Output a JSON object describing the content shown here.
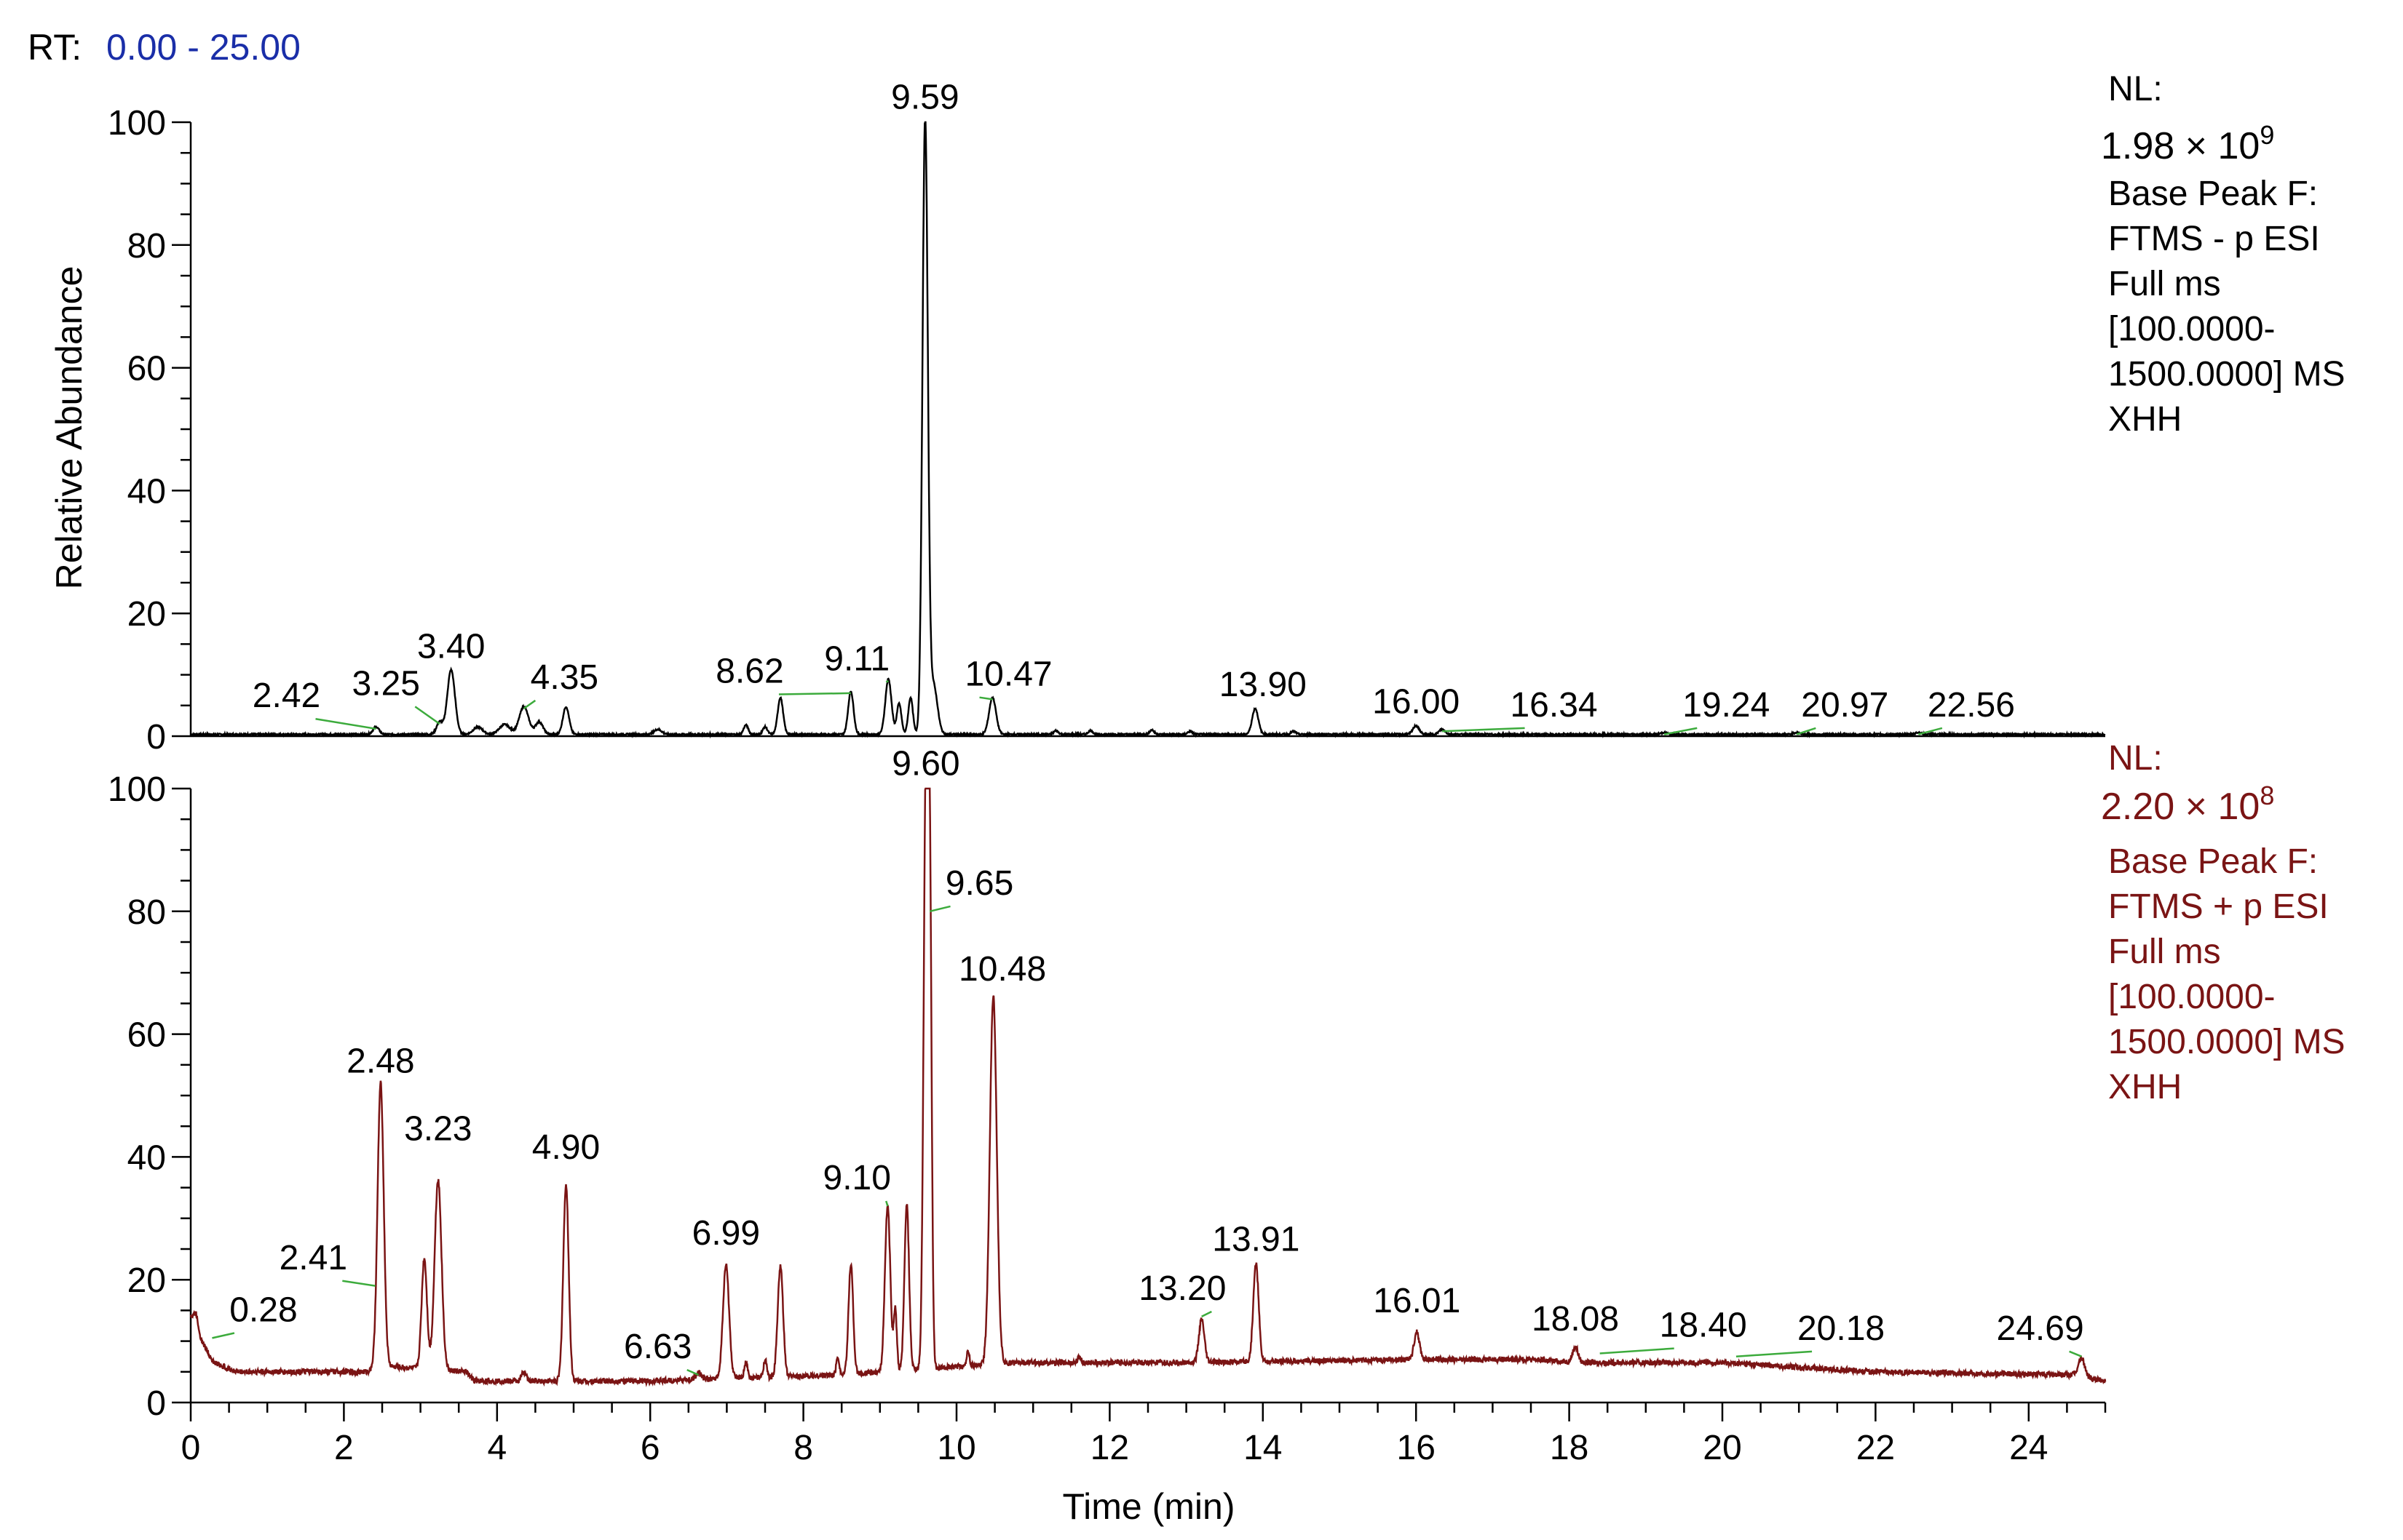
{
  "header": {
    "rt_label": "RT:",
    "rt_range": "0.00 - 25.00",
    "rt_color": "#1a2ea8"
  },
  "axes": {
    "ylabel": "Relative Abundance",
    "xlabel": "Time (min)",
    "xlim": [
      0,
      25
    ],
    "ylim": [
      0,
      100
    ],
    "xticks": [
      0,
      2,
      4,
      6,
      8,
      10,
      12,
      14,
      16,
      18,
      20,
      22,
      24
    ],
    "yticks": [
      0,
      20,
      40,
      60,
      80,
      100
    ]
  },
  "chart_data": [
    {
      "type": "line",
      "color": "#000000",
      "info": {
        "nl_label": "NL:",
        "nl_mantissa": "1.98 × 10",
        "nl_exponent": "9",
        "lines": [
          "Base Peak F:",
          "FTMS - p ESI",
          "Full ms",
          "[100.0000-",
          "1500.0000]  MS",
          "XHH"
        ]
      },
      "baseline": 0.3,
      "peaks": [
        {
          "rt": 2.42,
          "height": 1.2,
          "width": 0.04
        },
        {
          "rt": 3.25,
          "height": 2,
          "width": 0.04
        },
        {
          "rt": 3.4,
          "height": 10.5,
          "width": 0.05
        },
        {
          "rt": 3.75,
          "height": 1.2,
          "width": 0.06
        },
        {
          "rt": 4.1,
          "height": 1.6,
          "width": 0.07
        },
        {
          "rt": 4.35,
          "height": 4.5,
          "width": 0.06
        },
        {
          "rt": 4.55,
          "height": 2.0,
          "width": 0.05
        },
        {
          "rt": 4.9,
          "height": 4.5,
          "width": 0.04
        },
        {
          "rt": 6.1,
          "height": 0.8,
          "width": 0.05
        },
        {
          "rt": 7.25,
          "height": 1.5,
          "width": 0.03
        },
        {
          "rt": 7.5,
          "height": 1.2,
          "width": 0.03
        },
        {
          "rt": 7.7,
          "height": 6,
          "width": 0.035
        },
        {
          "rt": 8.62,
          "height": 7,
          "width": 0.035
        },
        {
          "rt": 9.11,
          "height": 9,
          "width": 0.04
        },
        {
          "rt": 9.25,
          "height": 5,
          "width": 0.03
        },
        {
          "rt": 9.4,
          "height": 6,
          "width": 0.03
        },
        {
          "rt": 9.59,
          "height": 100,
          "width": 0.035
        },
        {
          "rt": 9.7,
          "height": 8,
          "width": 0.05
        },
        {
          "rt": 10.47,
          "height": 6,
          "width": 0.045
        },
        {
          "rt": 11.3,
          "height": 0.6,
          "width": 0.03
        },
        {
          "rt": 11.75,
          "height": 0.6,
          "width": 0.03
        },
        {
          "rt": 12.55,
          "height": 0.7,
          "width": 0.03
        },
        {
          "rt": 13.05,
          "height": 0.5,
          "width": 0.03
        },
        {
          "rt": 13.9,
          "height": 4.2,
          "width": 0.04
        },
        {
          "rt": 14.4,
          "height": 0.5,
          "width": 0.03
        },
        {
          "rt": 16.0,
          "height": 1.4,
          "width": 0.04
        },
        {
          "rt": 16.34,
          "height": 0.8,
          "width": 0.04
        },
        {
          "rt": 19.24,
          "height": 0.3,
          "width": 0.04
        },
        {
          "rt": 20.97,
          "height": 0.3,
          "width": 0.04
        },
        {
          "rt": 22.56,
          "height": 0.3,
          "width": 0.04
        }
      ],
      "labels": [
        {
          "text": "2.42",
          "rt": 2.42,
          "y": 1.2,
          "lx": 1.25,
          "ly": 4
        },
        {
          "text": "3.25",
          "rt": 3.25,
          "y": 2.0,
          "lx": 2.55,
          "ly": 6
        },
        {
          "text": "3.40",
          "rt": 3.4,
          "y": 10.5,
          "lx": 3.4,
          "ly": 12
        },
        {
          "text": "4.35",
          "rt": 4.35,
          "y": 4.5,
          "lx": 4.88,
          "ly": 7
        },
        {
          "text": "8.62",
          "rt": 8.62,
          "y": 7,
          "lx": 7.3,
          "ly": 8
        },
        {
          "text": "9.11",
          "rt": 9.11,
          "y": 9,
          "lx": 8.7,
          "ly": 10
        },
        {
          "text": "9.59",
          "rt": 9.59,
          "y": 100,
          "lx": 9.59,
          "ly": 101.5
        },
        {
          "text": "10.47",
          "rt": 10.47,
          "y": 6,
          "lx": 10.68,
          "ly": 7.5
        },
        {
          "text": "13.90",
          "rt": 13.9,
          "y": 4.2,
          "lx": 14.0,
          "ly": 5.8
        },
        {
          "text": "16.00",
          "rt": 16.0,
          "y": 1.4,
          "lx": 16.0,
          "ly": 3
        },
        {
          "text": "16.34",
          "rt": 16.34,
          "y": 0.8,
          "lx": 17.8,
          "ly": 2.5
        },
        {
          "text": "19.24",
          "rt": 19.24,
          "y": 0.3,
          "lx": 20.05,
          "ly": 2.5
        },
        {
          "text": "20.97",
          "rt": 20.97,
          "y": 0.3,
          "lx": 21.6,
          "ly": 2.5
        },
        {
          "text": "22.56",
          "rt": 22.56,
          "y": 0.3,
          "lx": 23.25,
          "ly": 2.5
        }
      ]
    },
    {
      "type": "line",
      "color": "#7a1414",
      "info": {
        "nl_label": "NL:",
        "nl_mantissa": "2.20 × 10",
        "nl_exponent": "8",
        "lines": [
          "Base Peak F:",
          "FTMS + p ESI",
          "Full ms",
          "[100.0000-",
          "1500.0000]  MS",
          "XHH"
        ]
      },
      "baseline_profile": [
        [
          0,
          14
        ],
        [
          0.1,
          11
        ],
        [
          0.3,
          6.5
        ],
        [
          0.6,
          5
        ],
        [
          2.3,
          5
        ],
        [
          2.45,
          6
        ],
        [
          3.6,
          5
        ],
        [
          3.7,
          3.5
        ],
        [
          6.0,
          3.5
        ],
        [
          8.5,
          4.5
        ],
        [
          10.8,
          6.5
        ],
        [
          13,
          6.5
        ],
        [
          16,
          7
        ],
        [
          17.5,
          7
        ],
        [
          18.2,
          6.5
        ],
        [
          20,
          6.5
        ],
        [
          22,
          5
        ],
        [
          24.6,
          4.5
        ],
        [
          25,
          3.5
        ]
      ],
      "peaks": [
        {
          "rt": 0.07,
          "height": 2.5,
          "width": 0.03
        },
        {
          "rt": 2.48,
          "height": 46,
          "width": 0.04
        },
        {
          "rt": 3.05,
          "height": 18,
          "width": 0.035
        },
        {
          "rt": 3.23,
          "height": 31,
          "width": 0.045
        },
        {
          "rt": 4.35,
          "height": 1.5,
          "width": 0.03
        },
        {
          "rt": 4.9,
          "height": 32,
          "width": 0.035
        },
        {
          "rt": 6.63,
          "height": 1.0,
          "width": 0.04
        },
        {
          "rt": 6.99,
          "height": 18.5,
          "width": 0.04
        },
        {
          "rt": 7.25,
          "height": 2.5,
          "width": 0.02
        },
        {
          "rt": 7.5,
          "height": 3,
          "width": 0.02
        },
        {
          "rt": 7.7,
          "height": 18,
          "width": 0.035
        },
        {
          "rt": 8.45,
          "height": 3,
          "width": 0.02
        },
        {
          "rt": 8.62,
          "height": 18,
          "width": 0.03
        },
        {
          "rt": 9.1,
          "height": 27,
          "width": 0.035
        },
        {
          "rt": 9.2,
          "height": 10,
          "width": 0.02
        },
        {
          "rt": 9.35,
          "height": 27,
          "width": 0.03
        },
        {
          "rt": 9.6,
          "height": 95,
          "width": 0.03
        },
        {
          "rt": 9.65,
          "height": 73,
          "width": 0.025
        },
        {
          "rt": 10.15,
          "height": 2.5,
          "width": 0.02
        },
        {
          "rt": 10.48,
          "height": 60,
          "width": 0.045
        },
        {
          "rt": 11.6,
          "height": 1.0,
          "width": 0.02
        },
        {
          "rt": 13.2,
          "height": 7,
          "width": 0.035
        },
        {
          "rt": 13.91,
          "height": 16,
          "width": 0.035
        },
        {
          "rt": 16.01,
          "height": 4.5,
          "width": 0.035
        },
        {
          "rt": 18.08,
          "height": 2.5,
          "width": 0.035
        },
        {
          "rt": 24.69,
          "height": 3,
          "width": 0.04
        }
      ],
      "labels": [
        {
          "text": "0.28",
          "rt": 0.28,
          "y": 10.5,
          "lx": 0.95,
          "ly": 12.5
        },
        {
          "text": "2.41",
          "rt": 2.41,
          "y": 19,
          "lx": 1.6,
          "ly": 21
        },
        {
          "text": "2.48",
          "rt": 2.48,
          "y": 51,
          "lx": 2.48,
          "ly": 53
        },
        {
          "text": "3.23",
          "rt": 3.23,
          "y": 36,
          "lx": 3.23,
          "ly": 42
        },
        {
          "text": "4.90",
          "rt": 4.9,
          "y": 37,
          "lx": 4.9,
          "ly": 39
        },
        {
          "text": "6.63",
          "rt": 6.63,
          "y": 4.5,
          "lx": 6.1,
          "ly": 6.5
        },
        {
          "text": "6.99",
          "rt": 6.99,
          "y": 23,
          "lx": 6.99,
          "ly": 25
        },
        {
          "text": "9.10",
          "rt": 9.1,
          "y": 32,
          "lx": 8.7,
          "ly": 34
        },
        {
          "text": "9.60",
          "rt": 9.6,
          "y": 100,
          "lx": 9.6,
          "ly": 101.5
        },
        {
          "text": "9.65",
          "rt": 9.65,
          "y": 80,
          "lx": 10.3,
          "ly": 82
        },
        {
          "text": "10.48",
          "rt": 10.48,
          "y": 66,
          "lx": 10.6,
          "ly": 68
        },
        {
          "text": "13.20",
          "rt": 13.2,
          "y": 14,
          "lx": 12.95,
          "ly": 16
        },
        {
          "text": "13.91",
          "rt": 13.91,
          "y": 22,
          "lx": 13.91,
          "ly": 24
        },
        {
          "text": "16.01",
          "rt": 16.01,
          "y": 12,
          "lx": 16.01,
          "ly": 14
        },
        {
          "text": "18.08",
          "rt": 18.08,
          "y": 9,
          "lx": 18.08,
          "ly": 11
        },
        {
          "text": "18.40",
          "rt": 18.4,
          "y": 8,
          "lx": 19.75,
          "ly": 10
        },
        {
          "text": "20.18",
          "rt": 20.18,
          "y": 7.5,
          "lx": 21.55,
          "ly": 9.5
        },
        {
          "text": "24.69",
          "rt": 24.69,
          "y": 7.5,
          "lx": 24.15,
          "ly": 9.5
        }
      ]
    }
  ]
}
